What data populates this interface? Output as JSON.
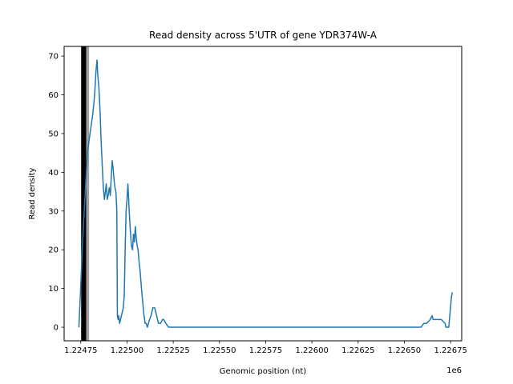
{
  "chart_data": {
    "type": "line",
    "title": "Read density across 5'UTR of gene YDR374W-A",
    "xlabel": "Genomic position (nt)",
    "ylabel": "Read density",
    "x_offset_label": "1e6",
    "xlim": [
      1224660,
      1226810
    ],
    "ylim": [
      -3.5,
      72.5
    ],
    "grid": false,
    "x_ticks": [
      {
        "value": 1224750,
        "label": "1.22475"
      },
      {
        "value": 1225000,
        "label": "1.22500"
      },
      {
        "value": 1225250,
        "label": "1.22525"
      },
      {
        "value": 1225500,
        "label": "1.22550"
      },
      {
        "value": 1225750,
        "label": "1.22575"
      },
      {
        "value": 1226000,
        "label": "1.22600"
      },
      {
        "value": 1226250,
        "label": "1.22625"
      },
      {
        "value": 1226500,
        "label": "1.22650"
      },
      {
        "value": 1226750,
        "label": "1.22675"
      }
    ],
    "y_ticks": [
      {
        "value": 0,
        "label": "0"
      },
      {
        "value": 10,
        "label": "10"
      },
      {
        "value": 20,
        "label": "20"
      },
      {
        "value": 30,
        "label": "30"
      },
      {
        "value": 40,
        "label": "40"
      },
      {
        "value": 50,
        "label": "50"
      },
      {
        "value": 60,
        "label": "60"
      },
      {
        "value": 70,
        "label": "70"
      }
    ],
    "vertical_bands": [
      {
        "x_start": 1224752,
        "x_end": 1224780,
        "color": "#000000"
      },
      {
        "x_start": 1224780,
        "x_end": 1224795,
        "color": "#a0a0a0"
      }
    ],
    "series": [
      {
        "color": "#1f77b4",
        "x": [
          1224740,
          1224760,
          1224772,
          1224786,
          1224800,
          1224815,
          1224825,
          1224832,
          1224838,
          1224842,
          1224848,
          1224855,
          1224860,
          1224868,
          1224872,
          1224878,
          1224883,
          1224888,
          1224893,
          1224898,
          1224904,
          1224910,
          1224915,
          1224920,
          1224925,
          1224930,
          1224935,
          1224940,
          1224945,
          1224948,
          1224952,
          1224955,
          1224960,
          1224965,
          1224970,
          1224975,
          1224980,
          1224985,
          1224990,
          1224995,
          1225000,
          1225005,
          1225008,
          1225012,
          1225018,
          1225024,
          1225030,
          1225035,
          1225040,
          1225045,
          1225050,
          1225055,
          1225060,
          1225065,
          1225070,
          1225075,
          1225080,
          1225086,
          1225092,
          1225098,
          1225104,
          1225110,
          1225116,
          1225122,
          1225130,
          1225140,
          1225150,
          1225160,
          1225170,
          1225182,
          1225192,
          1225198,
          1225210,
          1225225,
          1225240,
          1225250,
          1225260,
          1225270,
          1225280,
          1225290,
          1225320,
          1225400,
          1225600,
          1225800,
          1226000,
          1226200,
          1226400,
          1226550,
          1226590,
          1226605,
          1226620,
          1226640,
          1226650,
          1226655,
          1226665,
          1226680,
          1226700,
          1226720,
          1226725,
          1226740,
          1226755,
          1226760
        ],
        "values": [
          0,
          22,
          33,
          45,
          50,
          55,
          60,
          66,
          69,
          65,
          62,
          55,
          48,
          40,
          36,
          33,
          35,
          37,
          33,
          34,
          36,
          34,
          39,
          43,
          41,
          38,
          36,
          35,
          30,
          3,
          2,
          3,
          1,
          2,
          3,
          4,
          5,
          8,
          20,
          30,
          33,
          37,
          34,
          30,
          25,
          21,
          20,
          24,
          22,
          26,
          23,
          21,
          20,
          17,
          15,
          12,
          9,
          6,
          3,
          1,
          1,
          0,
          1,
          2,
          3,
          5,
          5,
          3,
          1,
          1,
          2,
          2,
          1,
          0,
          0,
          0,
          0,
          0,
          0,
          0,
          0,
          0,
          0,
          0,
          0,
          0,
          0,
          0,
          0,
          1,
          1,
          2,
          3,
          2,
          2,
          2,
          2,
          1,
          0,
          0,
          8,
          9
        ]
      }
    ]
  }
}
